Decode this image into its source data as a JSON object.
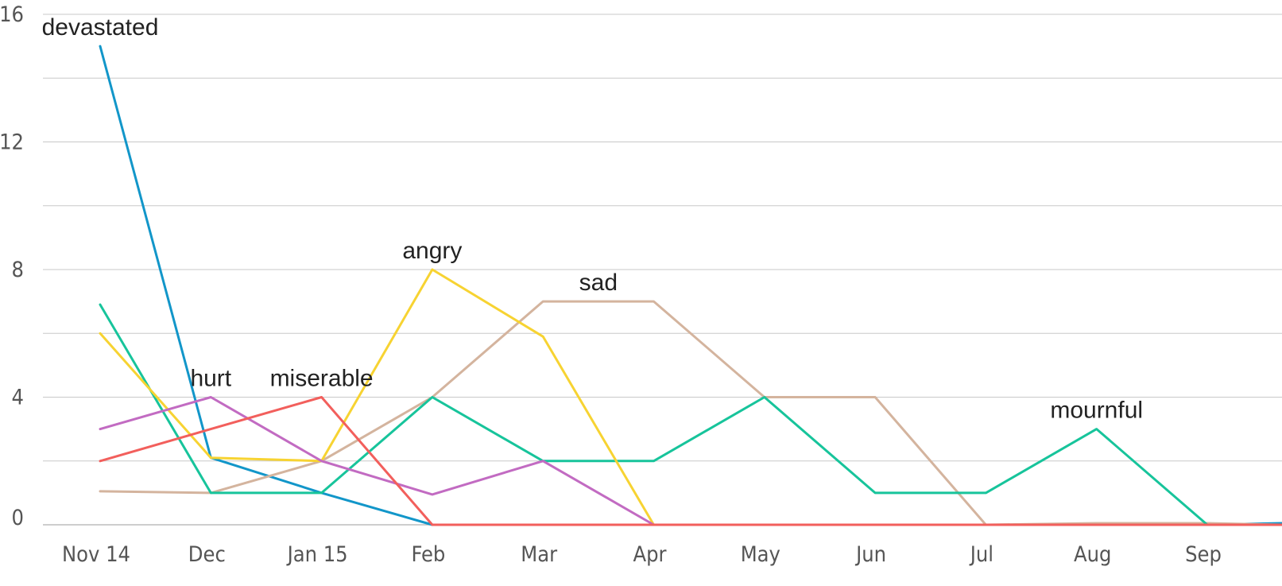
{
  "chart_data": {
    "type": "line",
    "categories": [
      "Nov 14",
      "Dec",
      "Jan 15",
      "Feb",
      "Mar",
      "Apr",
      "May",
      "Jun",
      "Jul",
      "Aug",
      "Sep",
      ""
    ],
    "ylim": [
      0,
      16
    ],
    "y_ticks": [
      0,
      4,
      8,
      12,
      16
    ],
    "grid": true,
    "legend": "none",
    "series": [
      {
        "name": "devastated",
        "color": "#1296c9",
        "values": [
          15,
          2.1,
          1,
          0,
          0,
          0,
          0,
          0,
          0,
          0,
          0,
          0.05
        ],
        "label_index": 0
      },
      {
        "name": "sad",
        "color": "#d4b49e",
        "values": [
          1.05,
          1,
          2,
          4,
          7,
          7,
          4,
          4,
          0,
          0.05,
          0.05,
          0
        ],
        "label_index": 4.5
      },
      {
        "name": "mournful",
        "color": "#17c49b",
        "values": [
          6.9,
          1,
          1,
          4,
          2,
          2,
          4,
          1,
          1,
          3,
          0,
          0
        ],
        "label_index": 9
      },
      {
        "name": "angry",
        "color": "#f7d332",
        "values": [
          6,
          2.1,
          2,
          8,
          5.9,
          0,
          0,
          0,
          0,
          0,
          0,
          0
        ],
        "label_index": 3
      },
      {
        "name": "hurt",
        "color": "#c26bc2",
        "values": [
          3,
          4,
          2,
          0.95,
          2,
          0,
          0,
          0,
          0,
          0,
          0,
          0
        ],
        "label_index": 1
      },
      {
        "name": "miserable",
        "color": "#f25f5c",
        "values": [
          2,
          3,
          4,
          0,
          0,
          0,
          0,
          0,
          0,
          0,
          0,
          0
        ],
        "label_index": 2
      }
    ]
  }
}
